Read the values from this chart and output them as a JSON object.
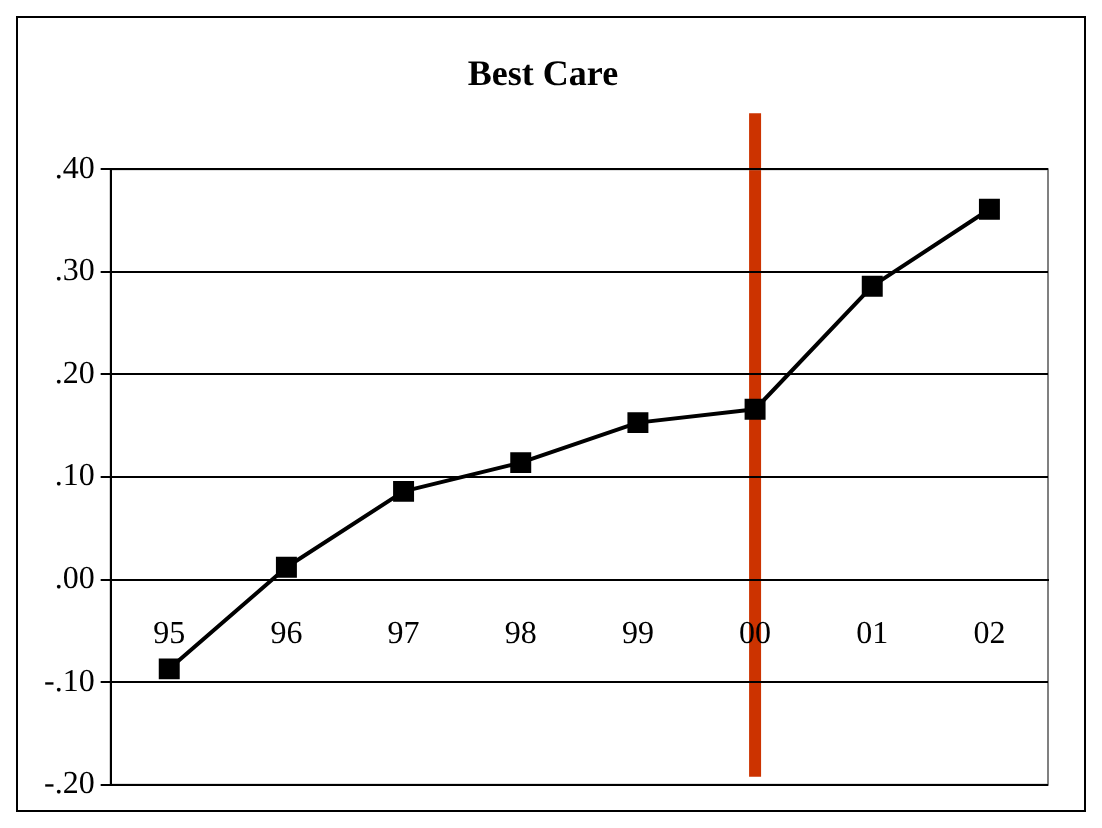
{
  "chart_data": {
    "type": "line",
    "title": "Best Care",
    "categories": [
      "95",
      "96",
      "97",
      "98",
      "99",
      "00",
      "01",
      "02"
    ],
    "series": [
      {
        "color": "#000000",
        "values": [
          -0.087,
          0.012,
          0.086,
          0.114,
          0.153,
          0.166,
          0.286,
          0.361
        ]
      }
    ],
    "ylim": [
      -0.2,
      0.4
    ],
    "yticks": [
      {
        "value": -0.2,
        "label": "-.20"
      },
      {
        "value": -0.1,
        "label": "-.10"
      },
      {
        "value": 0,
        "label": ".00"
      },
      {
        "value": 0.1,
        "label": ".10"
      },
      {
        "value": 0.2,
        "label": ".20"
      },
      {
        "value": 0.3,
        "label": ".30"
      },
      {
        "value": 0.4,
        "label": ".40"
      }
    ],
    "grid": "y",
    "legend": false,
    "marker": "square",
    "line_style": "solid",
    "ref_lines": [
      {
        "axis": "x",
        "value": "00",
        "color": "#cc3300"
      }
    ]
  }
}
